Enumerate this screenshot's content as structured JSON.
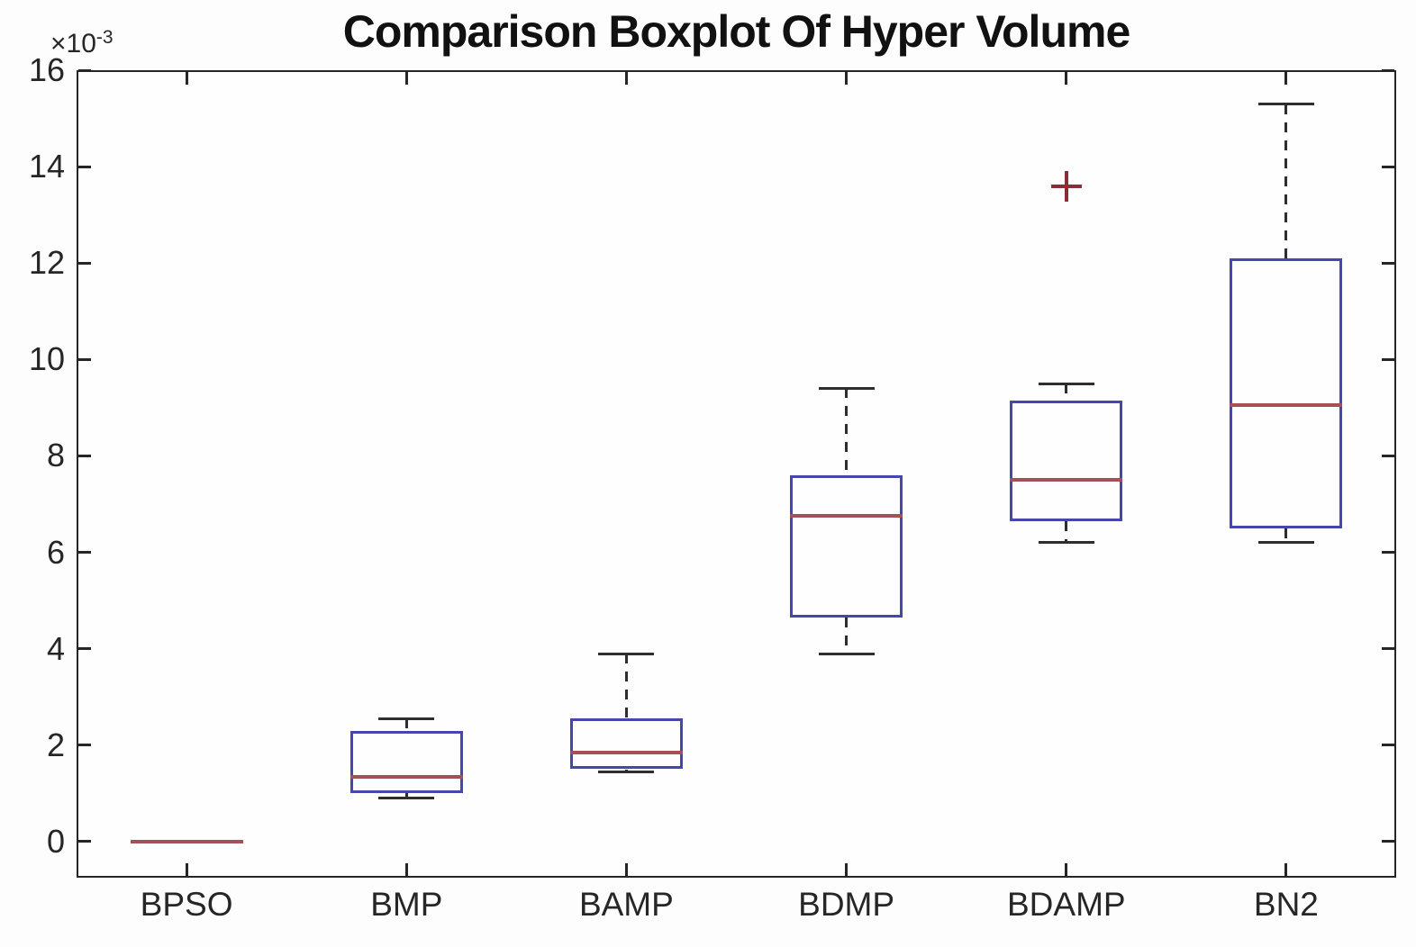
{
  "chart_data": {
    "type": "boxplot",
    "title": "Comparison Boxplot Of Hyper Volume",
    "y_axis": {
      "offset_text": "×10",
      "offset_exponent": "-3",
      "ticks": [
        0,
        2,
        4,
        6,
        8,
        10,
        12,
        14,
        16
      ],
      "tick_labels": [
        "0",
        "2",
        "4",
        "6",
        "8",
        "10",
        "12",
        "14",
        "16"
      ],
      "ylim": [
        -0.75,
        16
      ],
      "values_scale_note": "values shown in units of 10^-3"
    },
    "x_axis": {
      "categories": [
        "BPSO",
        "BMP",
        "BAMP",
        "BDMP",
        "BDAMP",
        "BN2"
      ],
      "xlim": [
        0.5,
        6.5
      ]
    },
    "series": [
      {
        "name": "BPSO",
        "whisker_low": 0,
        "q1": 0,
        "median": 0,
        "q3": 0,
        "whisker_high": 0,
        "outliers": [],
        "degenerate": true
      },
      {
        "name": "BMP",
        "whisker_low": 0.9,
        "q1": 1.0,
        "median": 1.35,
        "q3": 2.3,
        "whisker_high": 2.55,
        "outliers": [],
        "degenerate": false
      },
      {
        "name": "BAMP",
        "whisker_low": 1.45,
        "q1": 1.5,
        "median": 1.85,
        "q3": 2.55,
        "whisker_high": 3.9,
        "outliers": [],
        "degenerate": false
      },
      {
        "name": "BDMP",
        "whisker_low": 3.9,
        "q1": 4.65,
        "median": 6.75,
        "q3": 7.6,
        "whisker_high": 9.4,
        "outliers": [],
        "degenerate": false
      },
      {
        "name": "BDAMP",
        "whisker_low": 6.2,
        "q1": 6.65,
        "median": 7.5,
        "q3": 9.15,
        "whisker_high": 9.5,
        "outliers": [
          13.6
        ],
        "degenerate": false
      },
      {
        "name": "BN2",
        "whisker_low": 6.2,
        "q1": 6.5,
        "median": 9.05,
        "q3": 12.1,
        "whisker_high": 15.3,
        "outliers": [],
        "degenerate": false
      }
    ],
    "layout": {
      "grid": "off",
      "axis_box": "on",
      "tick_direction": "in",
      "legend": "none"
    },
    "colors": {
      "box_edge": "#4646ad",
      "median": "#a84e56",
      "whisker": "#2e2e2e",
      "outlier": "#8b2e34",
      "axis": "#262626",
      "title_text": "#111111",
      "background": "#ffffff"
    }
  }
}
